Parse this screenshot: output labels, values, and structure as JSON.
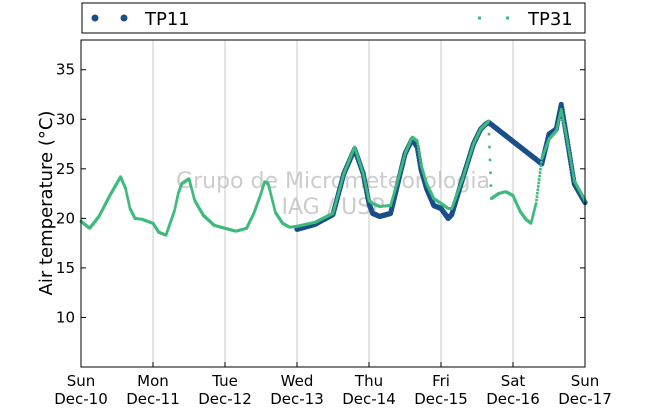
{
  "chart_data": {
    "type": "scatter",
    "title": "",
    "xlabel": "",
    "ylabel": "Air temperature (°C)",
    "x_tick_labels": [
      [
        "Sun",
        "Dec-10"
      ],
      [
        "Mon",
        "Dec-11"
      ],
      [
        "Tue",
        "Dec-12"
      ],
      [
        "Wed",
        "Dec-13"
      ],
      [
        "Thu",
        "Dec-14"
      ],
      [
        "Fri",
        "Dec-15"
      ],
      [
        "Sat",
        "Dec-16"
      ],
      [
        "Sun",
        "Dec-17"
      ]
    ],
    "xlim_days": [
      0,
      7
    ],
    "ylim": [
      5,
      38
    ],
    "y_ticks": [
      10,
      15,
      20,
      25,
      30,
      35
    ],
    "grid": "vertical",
    "legend_position": "top",
    "watermark": [
      "Grupo de Micrometeorologia",
      "IAG / USP"
    ],
    "series": [
      {
        "name": "TP11",
        "color": "#1b4f8a",
        "marker": "circle",
        "x_days": [
          3.0,
          3.25,
          3.5,
          3.65,
          3.8,
          3.92,
          4.0,
          4.05,
          4.15,
          4.3,
          4.4,
          4.5,
          4.6,
          4.67,
          4.72,
          4.8,
          4.9,
          5.0,
          5.1,
          5.15,
          5.3,
          5.45,
          5.55,
          5.62,
          5.66,
          6.4,
          6.5,
          6.6,
          6.67,
          6.75,
          6.85,
          7.0
        ],
        "y": [
          18.9,
          19.4,
          20.4,
          24.5,
          27.0,
          24.5,
          21.5,
          20.5,
          20.2,
          20.5,
          23.5,
          26.5,
          28.0,
          27.2,
          25.0,
          23.0,
          21.3,
          21.0,
          20.0,
          20.4,
          24.0,
          27.5,
          29.0,
          29.5,
          29.7,
          25.5,
          28.5,
          29.0,
          31.5,
          28.0,
          23.5,
          21.6
        ]
      },
      {
        "name": "TP31",
        "color": "#3dbb7c",
        "marker": "square",
        "x_days": [
          0.0,
          0.12,
          0.25,
          0.4,
          0.55,
          0.62,
          0.68,
          0.75,
          0.85,
          1.0,
          1.08,
          1.18,
          1.3,
          1.35,
          1.4,
          1.5,
          1.58,
          1.7,
          1.85,
          2.0,
          2.15,
          2.3,
          2.4,
          2.5,
          2.55,
          2.6,
          2.7,
          2.8,
          2.9,
          3.0,
          3.25,
          3.5,
          3.65,
          3.8,
          3.92,
          4.0,
          4.05,
          4.15,
          4.3,
          4.4,
          4.5,
          4.6,
          4.67,
          4.72,
          4.8,
          4.9,
          5.0,
          5.1,
          5.15,
          5.3,
          5.45,
          5.55,
          5.62,
          5.66,
          5.7,
          5.8,
          5.9,
          6.0,
          6.1,
          6.18,
          6.25,
          6.32,
          6.4,
          6.5,
          6.6,
          6.67,
          6.75,
          6.85,
          7.0
        ],
        "y": [
          19.7,
          19.0,
          20.2,
          22.3,
          24.2,
          23.0,
          21.0,
          20.0,
          19.9,
          19.5,
          18.6,
          18.3,
          20.8,
          22.5,
          23.5,
          24.0,
          21.8,
          20.3,
          19.3,
          19.0,
          18.7,
          19.0,
          20.5,
          22.5,
          23.7,
          23.5,
          20.6,
          19.5,
          19.1,
          19.2,
          19.6,
          20.5,
          24.5,
          27.2,
          24.5,
          21.8,
          21.5,
          21.2,
          21.3,
          23.8,
          26.5,
          28.2,
          27.8,
          25.5,
          23.5,
          22.0,
          21.5,
          21.0,
          21.0,
          24.0,
          27.5,
          29.0,
          29.5,
          29.8,
          22.0,
          22.5,
          22.7,
          22.3,
          20.7,
          19.9,
          19.5,
          21.5,
          26.0,
          28.0,
          28.8,
          31.0,
          28.0,
          23.8,
          21.8
        ]
      }
    ]
  }
}
